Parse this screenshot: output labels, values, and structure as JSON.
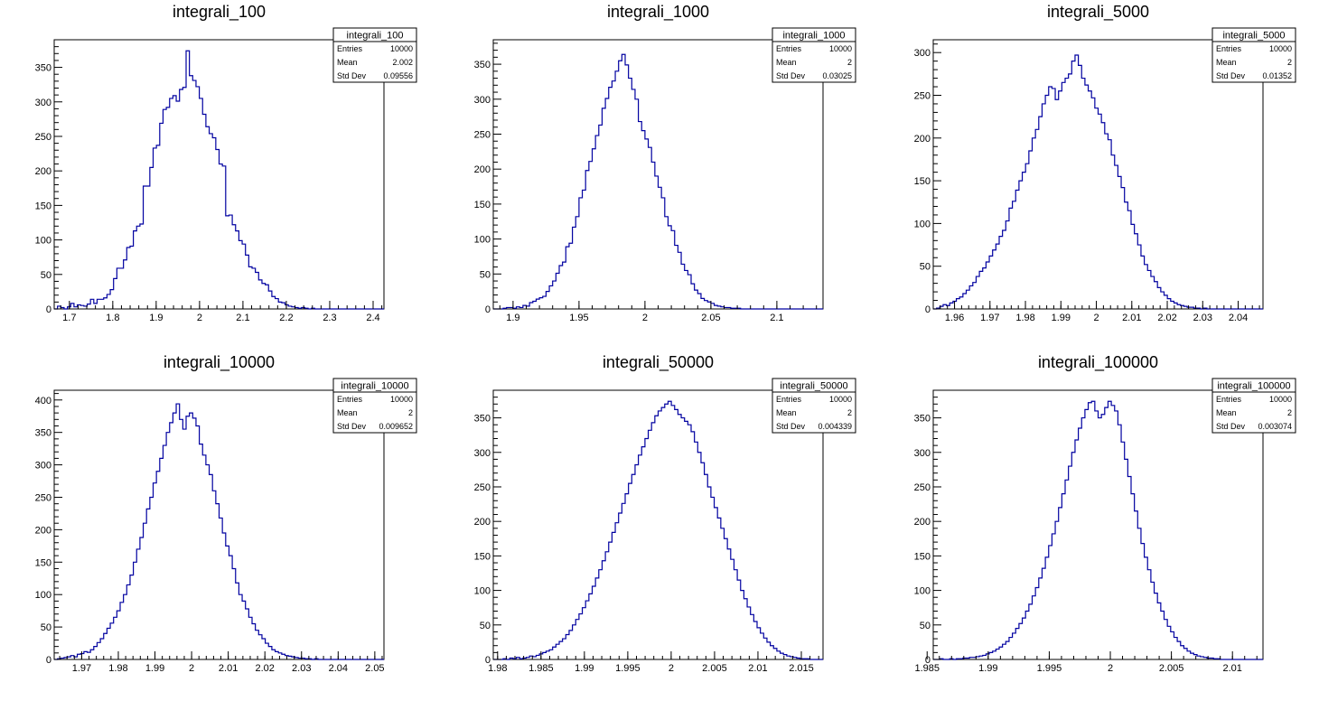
{
  "chart_data": [
    {
      "type": "histogram",
      "title": "integrali_100",
      "xlim": [
        1.665,
        2.425
      ],
      "ylim": [
        0,
        390
      ],
      "xticks": [
        1.7,
        1.8,
        1.9,
        2,
        2.1,
        2.2,
        2.3,
        2.4
      ],
      "xtick_labels": [
        "1.7",
        "1.8",
        "1.9",
        "2",
        "2.1",
        "2.2",
        "2.3",
        "2.4"
      ],
      "yticks": [
        0,
        50,
        100,
        150,
        200,
        250,
        300,
        350
      ],
      "ytick_labels": [
        "0",
        "50",
        "100",
        "150",
        "200",
        "250",
        "300",
        "350"
      ],
      "bins": 100,
      "series": [
        {
          "color": "#0000a0",
          "values": [
            0,
            4,
            2,
            0,
            3,
            8,
            3,
            6,
            5,
            4,
            7,
            14,
            8,
            14,
            14,
            16,
            21,
            28,
            44,
            59,
            59,
            71,
            89,
            91,
            113,
            120,
            123,
            178,
            178,
            205,
            233,
            237,
            269,
            289,
            292,
            305,
            309,
            301,
            318,
            321,
            374,
            338,
            331,
            322,
            305,
            282,
            264,
            254,
            248,
            231,
            210,
            207,
            135,
            136,
            122,
            113,
            99,
            94,
            78,
            61,
            59,
            53,
            42,
            37,
            35,
            26,
            18,
            15,
            10,
            9,
            6,
            4,
            3,
            2,
            1,
            2,
            1,
            0,
            1,
            0,
            0,
            0,
            0,
            0,
            0,
            0,
            0,
            0,
            0,
            0,
            0,
            0,
            0,
            0,
            0,
            0,
            0,
            0,
            0,
            0
          ]
        }
      ],
      "stats": {
        "box_title": "integrali_100",
        "rows": [
          {
            "label": "Entries",
            "value": "10000"
          },
          {
            "label": "Mean",
            "value": "2.002"
          },
          {
            "label": "Std Dev",
            "value": "0.09556"
          }
        ]
      }
    },
    {
      "type": "histogram",
      "title": "integrali_1000",
      "xlim": [
        1.885,
        2.135
      ],
      "ylim": [
        0,
        385
      ],
      "xticks": [
        1.9,
        1.95,
        2,
        2.05,
        2.1
      ],
      "xtick_labels": [
        "1.9",
        "1.95",
        "2",
        "2.05",
        "2.1"
      ],
      "yticks": [
        0,
        50,
        100,
        150,
        200,
        250,
        300,
        350
      ],
      "ytick_labels": [
        "0",
        "50",
        "100",
        "150",
        "200",
        "250",
        "300",
        "350"
      ],
      "bins": 100,
      "series": [
        {
          "color": "#0000a0",
          "values": [
            0,
            0,
            0,
            1,
            2,
            2,
            1,
            3,
            2,
            5,
            4,
            9,
            11,
            14,
            16,
            18,
            25,
            33,
            40,
            51,
            62,
            67,
            89,
            94,
            117,
            132,
            159,
            170,
            198,
            211,
            229,
            248,
            263,
            287,
            301,
            317,
            326,
            340,
            355,
            364,
            349,
            330,
            314,
            300,
            268,
            255,
            243,
            231,
            210,
            190,
            174,
            159,
            132,
            119,
            112,
            91,
            81,
            64,
            55,
            49,
            36,
            27,
            22,
            15,
            12,
            10,
            8,
            5,
            4,
            3,
            2,
            2,
            1,
            1,
            1,
            0,
            0,
            0,
            0,
            0,
            0,
            0,
            0,
            0,
            0,
            0,
            0,
            0,
            0,
            0,
            0,
            0,
            0,
            0,
            0,
            0,
            0,
            0,
            0,
            0
          ]
        }
      ],
      "stats": {
        "box_title": "integrali_1000",
        "rows": [
          {
            "label": "Entries",
            "value": "10000"
          },
          {
            "label": "Mean",
            "value": "2"
          },
          {
            "label": "Std Dev",
            "value": "0.03025"
          }
        ]
      }
    },
    {
      "type": "histogram",
      "title": "integrali_5000",
      "xlim": [
        1.954,
        2.047
      ],
      "ylim": [
        0,
        315
      ],
      "xticks": [
        1.96,
        1.97,
        1.98,
        1.99,
        2,
        2.01,
        2.02,
        2.03,
        2.04
      ],
      "xtick_labels": [
        "1.96",
        "1.97",
        "1.98",
        "1.99",
        "2",
        "2.01",
        "2.02",
        "2.03",
        "2.04"
      ],
      "yticks": [
        0,
        50,
        100,
        150,
        200,
        250,
        300
      ],
      "ytick_labels": [
        "0",
        "50",
        "100",
        "150",
        "200",
        "250",
        "300"
      ],
      "bins": 100,
      "series": [
        {
          "color": "#0000a0",
          "values": [
            0,
            1,
            3,
            5,
            4,
            7,
            9,
            12,
            14,
            18,
            22,
            27,
            31,
            38,
            44,
            48,
            55,
            62,
            69,
            76,
            85,
            92,
            103,
            118,
            126,
            139,
            150,
            160,
            170,
            185,
            200,
            210,
            225,
            240,
            250,
            260,
            258,
            245,
            255,
            265,
            270,
            275,
            290,
            297,
            285,
            270,
            262,
            255,
            247,
            235,
            228,
            218,
            205,
            198,
            180,
            168,
            155,
            142,
            125,
            115,
            99,
            88,
            75,
            62,
            52,
            45,
            38,
            32,
            25,
            20,
            16,
            12,
            9,
            7,
            5,
            4,
            3,
            2,
            2,
            1,
            1,
            0,
            1,
            0,
            0,
            0,
            0,
            0,
            0,
            0,
            0,
            0,
            0,
            0,
            0,
            0,
            0,
            0,
            0,
            0
          ]
        }
      ],
      "stats": {
        "box_title": "integrali_5000",
        "rows": [
          {
            "label": "Entries",
            "value": "10000"
          },
          {
            "label": "Mean",
            "value": "2"
          },
          {
            "label": "Std Dev",
            "value": "0.01352"
          }
        ]
      }
    },
    {
      "type": "histogram",
      "title": "integrali_10000",
      "xlim": [
        1.9625,
        2.0525
      ],
      "ylim": [
        0,
        415
      ],
      "xticks": [
        1.97,
        1.98,
        1.99,
        2,
        2.01,
        2.02,
        2.03,
        2.04,
        2.05
      ],
      "xtick_labels": [
        "1.97",
        "1.98",
        "1.99",
        "2",
        "2.01",
        "2.02",
        "2.03",
        "2.04",
        "2.05"
      ],
      "yticks": [
        0,
        50,
        100,
        150,
        200,
        250,
        300,
        350,
        400
      ],
      "ytick_labels": [
        "0",
        "50",
        "100",
        "150",
        "200",
        "250",
        "300",
        "350",
        "400"
      ],
      "bins": 100,
      "series": [
        {
          "color": "#0000a0",
          "values": [
            0,
            1,
            2,
            3,
            4,
            6,
            4,
            8,
            9,
            12,
            11,
            15,
            20,
            26,
            32,
            40,
            48,
            56,
            65,
            75,
            88,
            100,
            115,
            130,
            150,
            170,
            188,
            210,
            232,
            250,
            272,
            290,
            310,
            330,
            350,
            365,
            380,
            394,
            370,
            355,
            375,
            380,
            372,
            360,
            332,
            315,
            300,
            285,
            260,
            240,
            218,
            195,
            175,
            160,
            140,
            118,
            100,
            90,
            78,
            65,
            55,
            45,
            38,
            32,
            25,
            20,
            15,
            12,
            10,
            8,
            6,
            5,
            4,
            3,
            2,
            2,
            1,
            1,
            0,
            1,
            0,
            0,
            0,
            0,
            0,
            0,
            0,
            0,
            0,
            0,
            0,
            0,
            0,
            0,
            0,
            0,
            0,
            0,
            0,
            0
          ]
        }
      ],
      "stats": {
        "box_title": "integrali_10000",
        "rows": [
          {
            "label": "Entries",
            "value": "10000"
          },
          {
            "label": "Mean",
            "value": "2"
          },
          {
            "label": "Std Dev",
            "value": "0.009652"
          }
        ]
      }
    },
    {
      "type": "histogram",
      "title": "integrali_50000",
      "xlim": [
        1.9795,
        2.0175
      ],
      "ylim": [
        0,
        390
      ],
      "xticks": [
        1.98,
        1.985,
        1.99,
        1.995,
        2,
        2.005,
        2.01,
        2.015
      ],
      "xtick_labels": [
        "1.98",
        "1.985",
        "1.99",
        "1.995",
        "2",
        "2.005",
        "2.01",
        "2.015"
      ],
      "yticks": [
        0,
        50,
        100,
        150,
        200,
        250,
        300,
        350
      ],
      "ytick_labels": [
        "0",
        "50",
        "100",
        "150",
        "200",
        "250",
        "300",
        "350"
      ],
      "bins": 100,
      "series": [
        {
          "color": "#0000a0",
          "values": [
            0,
            0,
            0,
            1,
            0,
            2,
            1,
            3,
            1,
            2,
            3,
            5,
            4,
            6,
            8,
            10,
            12,
            14,
            18,
            22,
            26,
            30,
            36,
            42,
            50,
            58,
            66,
            75,
            85,
            95,
            106,
            118,
            130,
            143,
            156,
            170,
            184,
            198,
            212,
            226,
            240,
            255,
            268,
            282,
            296,
            308,
            320,
            332,
            343,
            353,
            360,
            365,
            370,
            374,
            368,
            362,
            355,
            350,
            345,
            340,
            330,
            315,
            300,
            285,
            268,
            250,
            235,
            220,
            205,
            190,
            175,
            160,
            145,
            130,
            115,
            100,
            88,
            76,
            65,
            55,
            46,
            38,
            31,
            25,
            20,
            16,
            12,
            9,
            7,
            5,
            4,
            3,
            2,
            1,
            1,
            1,
            0,
            0,
            0,
            0
          ]
        }
      ],
      "stats": {
        "box_title": "integrali_50000",
        "rows": [
          {
            "label": "Entries",
            "value": "10000"
          },
          {
            "label": "Mean",
            "value": "2"
          },
          {
            "label": "Std Dev",
            "value": "0.004339"
          }
        ]
      }
    },
    {
      "type": "histogram",
      "title": "integrali_100000",
      "xlim": [
        1.9855,
        2.0125
      ],
      "ylim": [
        0,
        390
      ],
      "xticks": [
        1.985,
        1.99,
        1.995,
        2,
        2.005,
        2.01
      ],
      "xtick_labels": [
        "1.985",
        "1.99",
        "1.995",
        "2",
        "2.005",
        "2.01"
      ],
      "yticks": [
        0,
        50,
        100,
        150,
        200,
        250,
        300,
        350
      ],
      "ytick_labels": [
        "0",
        "50",
        "100",
        "150",
        "200",
        "250",
        "300",
        "350"
      ],
      "bins": 100,
      "series": [
        {
          "color": "#0000a0",
          "values": [
            0,
            0,
            1,
            0,
            0,
            1,
            0,
            1,
            1,
            2,
            2,
            3,
            3,
            4,
            5,
            6,
            8,
            10,
            12,
            15,
            18,
            22,
            26,
            32,
            38,
            45,
            52,
            60,
            70,
            80,
            92,
            104,
            118,
            132,
            148,
            165,
            182,
            200,
            220,
            240,
            260,
            280,
            300,
            318,
            335,
            350,
            362,
            372,
            374,
            360,
            350,
            355,
            365,
            374,
            368,
            360,
            340,
            315,
            290,
            265,
            240,
            215,
            190,
            168,
            148,
            130,
            112,
            96,
            82,
            70,
            58,
            48,
            40,
            32,
            26,
            20,
            16,
            12,
            9,
            7,
            5,
            4,
            3,
            2,
            2,
            1,
            1,
            0,
            0,
            0,
            0,
            0,
            0,
            0,
            0,
            0,
            0,
            0,
            0,
            0
          ]
        }
      ],
      "stats": {
        "box_title": "integrali_100000",
        "rows": [
          {
            "label": "Entries",
            "value": "10000"
          },
          {
            "label": "Mean",
            "value": "2"
          },
          {
            "label": "Std Dev",
            "value": "0.003074"
          }
        ]
      }
    }
  ]
}
